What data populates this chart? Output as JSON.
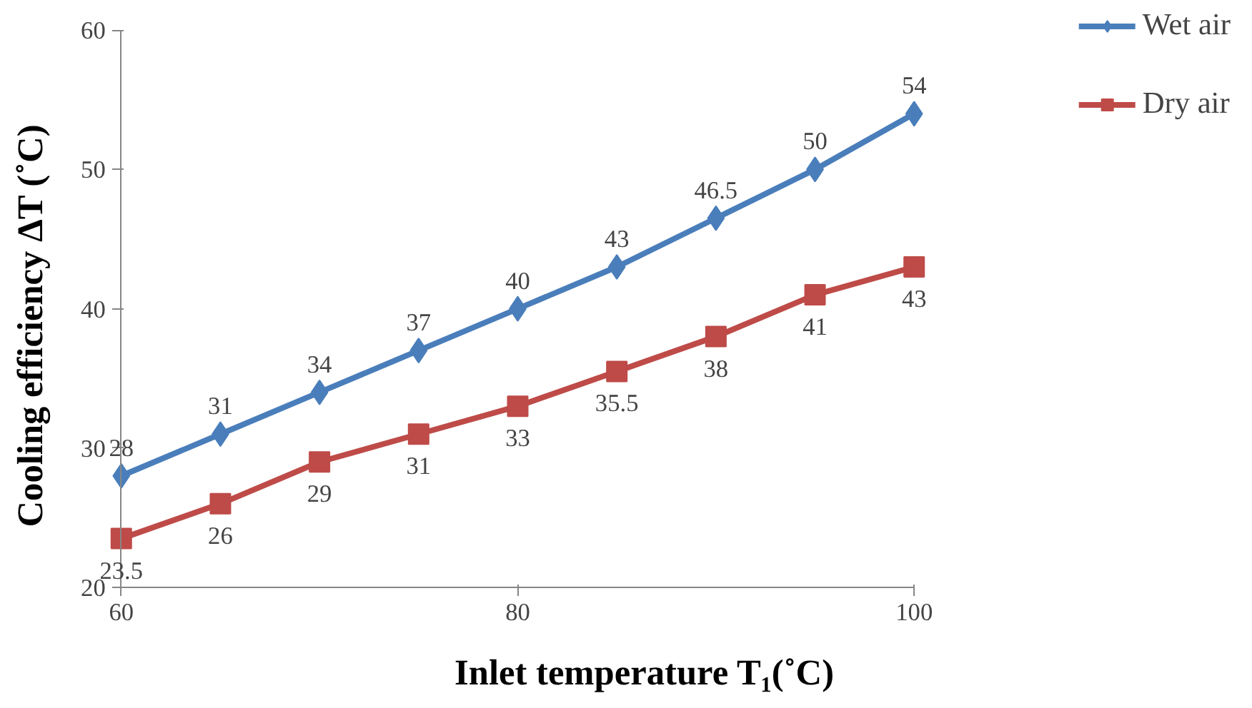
{
  "chart_data": {
    "type": "line",
    "xlabel": "Inlet temperature T₁(˚C)",
    "ylabel": "Cooling efficiency ΔT (˚C)",
    "x": [
      60,
      65,
      70,
      75,
      80,
      85,
      90,
      95,
      100
    ],
    "series": [
      {
        "name": "Wet air",
        "color": "#4a7ebb",
        "marker": "diamond",
        "values": [
          28,
          31,
          34,
          37,
          40,
          43,
          46.5,
          50,
          54
        ]
      },
      {
        "name": "Dry air",
        "color": "#be4b48",
        "marker": "square",
        "values": [
          23.5,
          26,
          29,
          31,
          33,
          35.5,
          38,
          41,
          43
        ]
      }
    ],
    "xlim": [
      60,
      100
    ],
    "xticks": [
      60,
      80,
      100
    ],
    "ylim": [
      20,
      60
    ],
    "yticks": [
      20,
      30,
      40,
      50,
      60
    ],
    "grid": false,
    "legend": "right",
    "data_labels": true,
    "line_style": "solid"
  }
}
